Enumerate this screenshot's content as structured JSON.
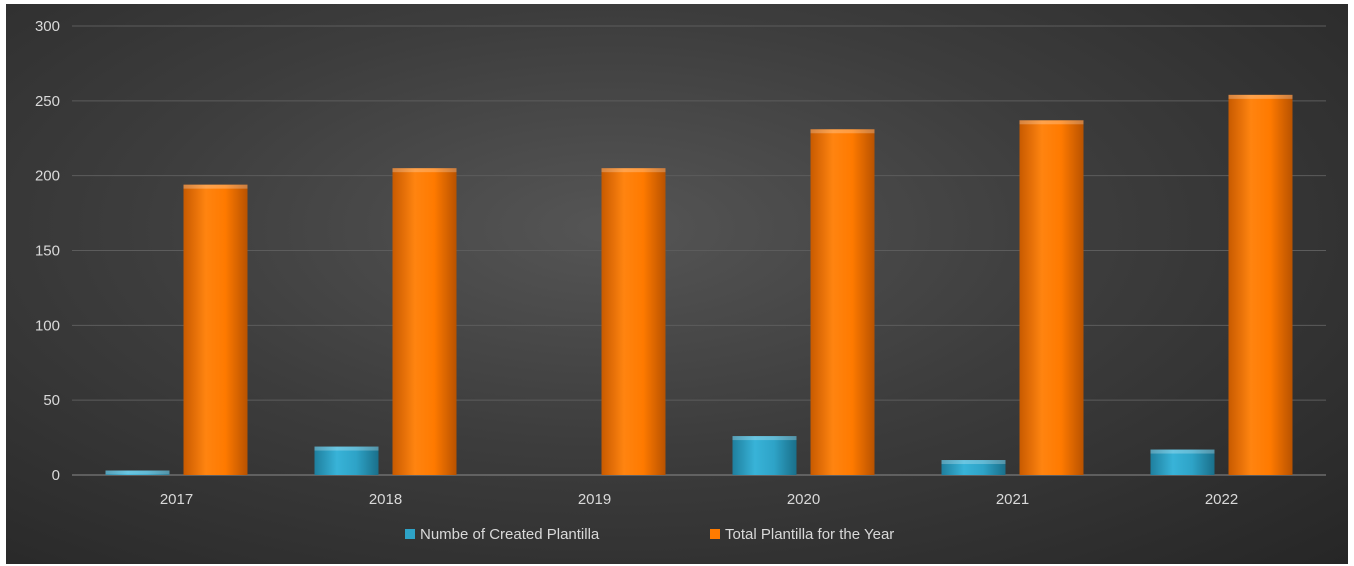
{
  "chart_data": {
    "type": "bar",
    "categories": [
      "2017",
      "2018",
      "2019",
      "2020",
      "2021",
      "2022"
    ],
    "series": [
      {
        "name": "Numbe of Created Plantilla",
        "values": [
          3,
          19,
          0,
          26,
          10,
          17
        ],
        "color": "#2ea3c7"
      },
      {
        "name": "Total Plantilla for the Year",
        "values": [
          194,
          205,
          205,
          231,
          237,
          254
        ],
        "color": "#ff7b00"
      }
    ],
    "ylim": [
      0,
      300
    ],
    "yticks": [
      0,
      50,
      100,
      150,
      200,
      250,
      300
    ],
    "grid": true,
    "legend_position": "bottom",
    "background": "#3a3a3a"
  }
}
